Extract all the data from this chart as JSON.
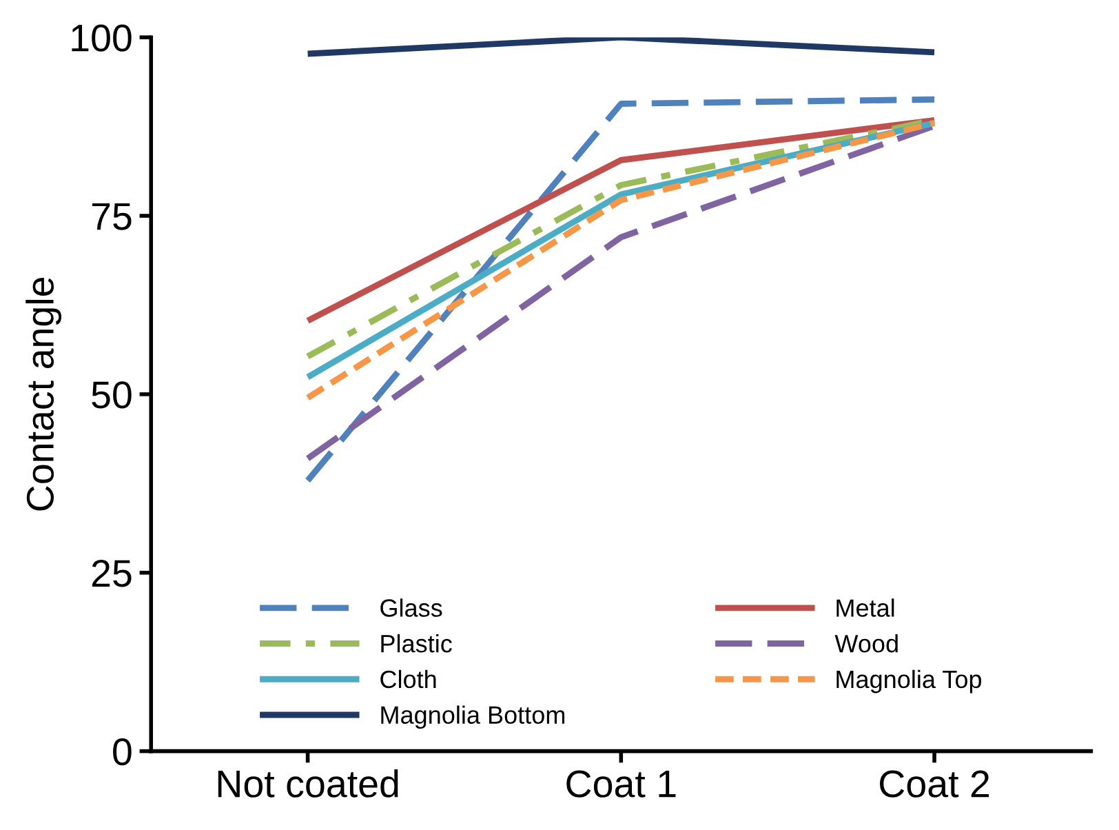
{
  "chart_data": {
    "type": "line",
    "ylabel": "Contact angle",
    "categories": [
      "Not coated",
      "Coat 1",
      "Coat 2"
    ],
    "series": [
      {
        "name": "Glass",
        "color": "#4f81bd",
        "line_style": "dashed",
        "values": [
          37.9,
          90.7,
          91.3
        ]
      },
      {
        "name": "Metal",
        "color": "#c0504d",
        "line_style": "solid",
        "values": [
          60.3,
          82.8,
          88.4
        ]
      },
      {
        "name": "Plastic",
        "color": "#9bbb59",
        "line_style": "dashdot",
        "values": [
          55.3,
          79.3,
          88.4
        ]
      },
      {
        "name": "Wood",
        "color": "#8064a2",
        "line_style": "dashed",
        "values": [
          41,
          72,
          87.6
        ]
      },
      {
        "name": "Cloth",
        "color": "#4bacc6",
        "line_style": "solid",
        "values": [
          52.4,
          78,
          88
        ]
      },
      {
        "name": "Magnolia Top",
        "color": "#f79646",
        "line_style": "dotted",
        "values": [
          49.5,
          77.2,
          88
        ]
      },
      {
        "name": "Magnolia Bottom",
        "color": "#1f3864",
        "line_style": "solid",
        "values": [
          97.7,
          100,
          97.9
        ]
      }
    ],
    "ylim": [
      0,
      100
    ],
    "yticks": [
      0,
      25,
      50,
      75,
      100
    ],
    "grid": false,
    "legend": "bottom",
    "marker": "none"
  }
}
